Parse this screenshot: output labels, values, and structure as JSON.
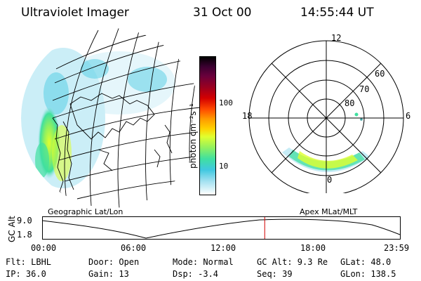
{
  "header": {
    "instrument": "Ultraviolet Imager",
    "date": "31 Oct 00",
    "time": "14:55:44 UT"
  },
  "left_map": {
    "caption": "Geographic Lat/Lon"
  },
  "colorbar": {
    "unit_label": "photon cm⁻²s⁻¹",
    "ticks": [
      "100",
      "10"
    ],
    "colors": [
      "#000000",
      "#3a0030",
      "#6a003c",
      "#9a0020",
      "#d40000",
      "#ff4a00",
      "#ff9a00",
      "#ffd000",
      "#e0ff30",
      "#90f060",
      "#40e0a0",
      "#40c8e0",
      "#a0e0f0",
      "#ffffff"
    ]
  },
  "polar": {
    "caption": "Apex  MLat/MLT",
    "mlt_labels": {
      "top": "12",
      "left": "18",
      "right": "6",
      "bottom": "0"
    },
    "lat_labels": [
      "60",
      "70",
      "80"
    ]
  },
  "altitude_plot": {
    "ylabel": "GC Alt",
    "y_ticks": [
      "9.0",
      "1.8"
    ],
    "x_ticks": [
      "00:00",
      "06:00",
      "12:00",
      "18:00",
      "23:59"
    ],
    "current_marker_hours": 14.93
  },
  "info": {
    "filter": "Flt: LBHL",
    "ip": "IP: 36.0",
    "door": "Door: Open",
    "gain": "Gain: 13",
    "mode": "Mode: Normal",
    "dsp": "Dsp:    -3.4",
    "gc_alt": "GC Alt: 9.3 Re",
    "seq": "Seq: 39",
    "glat": "GLat: 48.0",
    "glon": "GLon: 138.5"
  }
}
